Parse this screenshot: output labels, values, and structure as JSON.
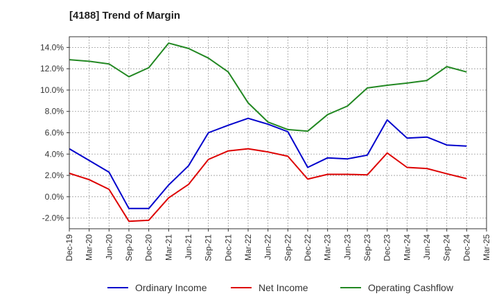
{
  "chart_data": {
    "type": "line",
    "title": "[4188]  Trend of Margin",
    "xlabel": "",
    "ylabel": "",
    "categories": [
      "Dec-19",
      "Mar-20",
      "Jun-20",
      "Sep-20",
      "Dec-20",
      "Mar-21",
      "Jun-21",
      "Sep-21",
      "Dec-21",
      "Mar-22",
      "Jun-22",
      "Sep-22",
      "Dec-22",
      "Mar-23",
      "Jun-23",
      "Sep-23",
      "Dec-23",
      "Mar-24",
      "Jun-24",
      "Sep-24",
      "Dec-24",
      "Mar-25"
    ],
    "ylim": [
      -3.0,
      15.0
    ],
    "yticks": [
      -2,
      0,
      2,
      4,
      6,
      8,
      10,
      12,
      14
    ],
    "ytick_labels": [
      "-2.0%",
      "0.0%",
      "2.0%",
      "4.0%",
      "6.0%",
      "8.0%",
      "10.0%",
      "12.0%",
      "14.0%"
    ],
    "grid": true,
    "legend_position": "bottom",
    "series": [
      {
        "name": "Ordinary Income",
        "color": "#0000cc",
        "values": [
          4.5,
          3.4,
          2.3,
          -1.1,
          -1.1,
          1.1,
          2.9,
          6.0,
          6.7,
          7.35,
          6.8,
          6.1,
          2.75,
          3.65,
          3.55,
          3.9,
          7.2,
          5.5,
          5.6,
          4.85,
          4.75,
          null
        ]
      },
      {
        "name": "Net Income",
        "color": "#dd0000",
        "values": [
          2.2,
          1.6,
          0.7,
          -2.3,
          -2.2,
          -0.1,
          1.15,
          3.5,
          4.3,
          4.5,
          4.2,
          3.8,
          1.65,
          2.1,
          2.1,
          2.05,
          4.1,
          2.75,
          2.65,
          2.15,
          1.7,
          null
        ]
      },
      {
        "name": "Operating Cashflow",
        "color": "#228822",
        "values": [
          12.85,
          12.7,
          12.45,
          11.25,
          12.1,
          14.4,
          13.9,
          13.0,
          11.7,
          8.8,
          7.0,
          6.3,
          6.15,
          7.7,
          8.5,
          10.2,
          10.45,
          10.65,
          10.9,
          12.2,
          11.7,
          null
        ]
      }
    ]
  }
}
